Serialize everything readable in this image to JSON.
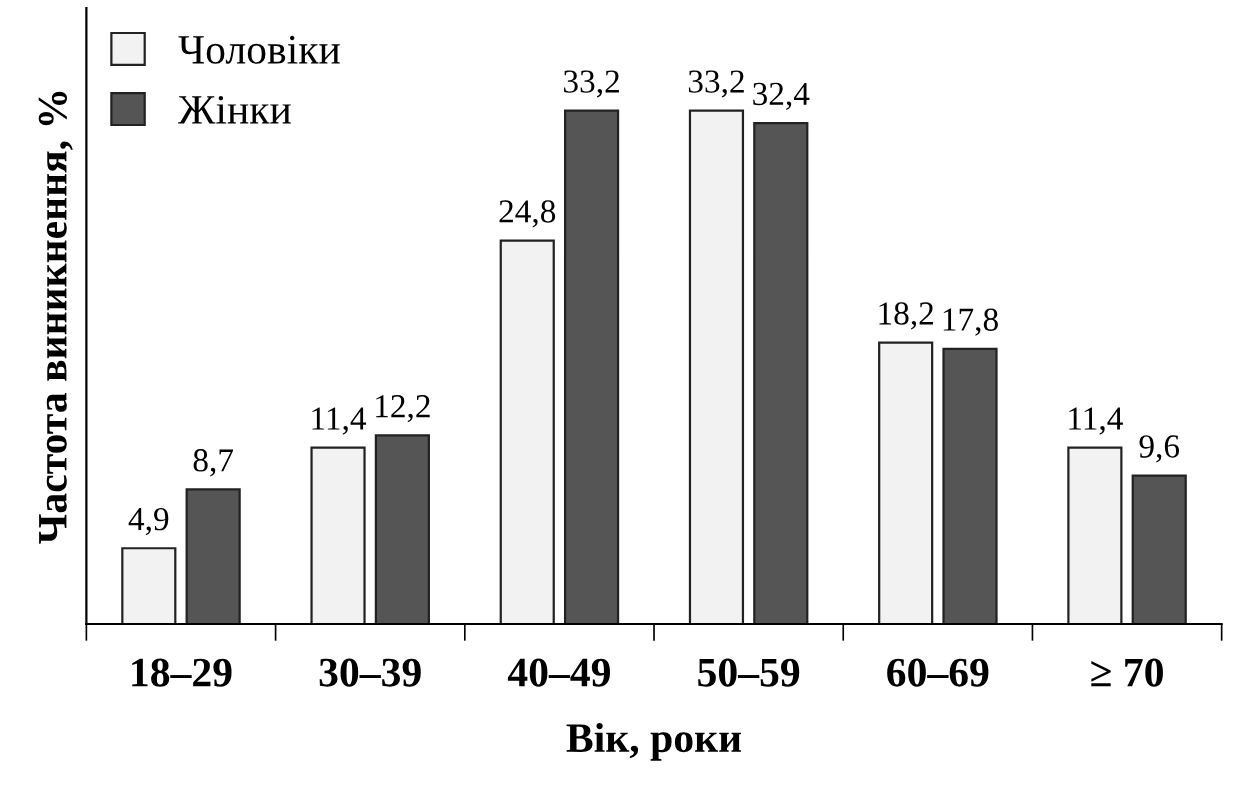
{
  "chart_data": {
    "type": "bar",
    "xlabel": "Вік, роки",
    "ylabel": "Частота виникнення, %",
    "categories": [
      "18–29",
      "30–39",
      "40–49",
      "50–59",
      "60–69",
      "≥ 70"
    ],
    "series": [
      {
        "name": "Чоловіки",
        "color": "#f2f2f2",
        "values": [
          4.9,
          11.4,
          24.8,
          33.2,
          18.2,
          11.4
        ],
        "value_labels": [
          "4,9",
          "11,4",
          "24,8",
          "33,2",
          "18,2",
          "11,4"
        ]
      },
      {
        "name": "Жінки",
        "color": "#555555",
        "values": [
          8.7,
          12.2,
          33.2,
          32.4,
          17.8,
          9.6
        ],
        "value_labels": [
          "8,7",
          "12,2",
          "33,2",
          "32,4",
          "17,8",
          "9,6"
        ]
      }
    ],
    "legend": "top left",
    "grid": false
  }
}
